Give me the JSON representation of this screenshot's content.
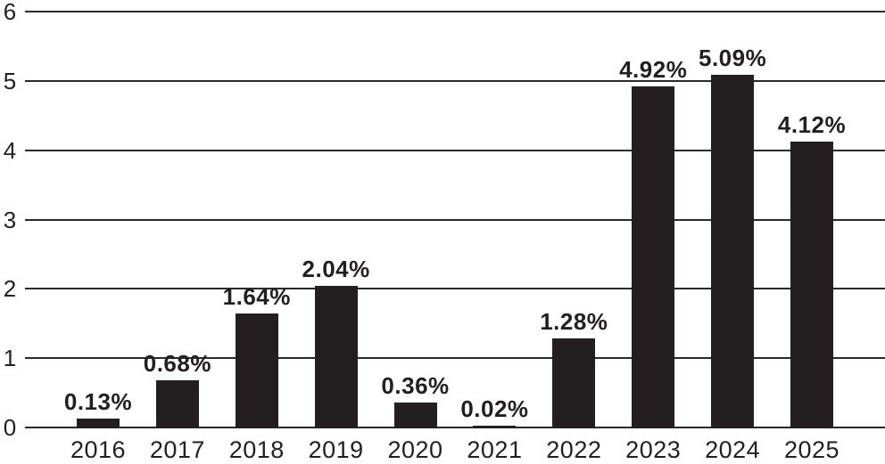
{
  "chart_data": {
    "type": "bar",
    "title": "",
    "xlabel": "",
    "ylabel": "",
    "categories": [
      "2016",
      "2017",
      "2018",
      "2019",
      "2020",
      "2021",
      "2022",
      "2023",
      "2024",
      "2025"
    ],
    "values": [
      0.13,
      0.68,
      1.64,
      2.04,
      0.36,
      0.02,
      1.28,
      4.92,
      5.09,
      4.12
    ],
    "value_labels": [
      "0.13%",
      "0.68%",
      "1.64%",
      "2.04%",
      "0.36%",
      "0.02%",
      "1.28%",
      "4.92%",
      "5.09%",
      "4.12%"
    ],
    "ylim": [
      0,
      6
    ],
    "yticks": [
      "0",
      "1",
      "2",
      "3",
      "4",
      "5",
      "6"
    ],
    "grid": true,
    "legend_position": "none",
    "bar_color": "#231f20",
    "gridline_color": "#2b2a29",
    "text_color": "#231f20",
    "background_color": "#ffffff"
  }
}
